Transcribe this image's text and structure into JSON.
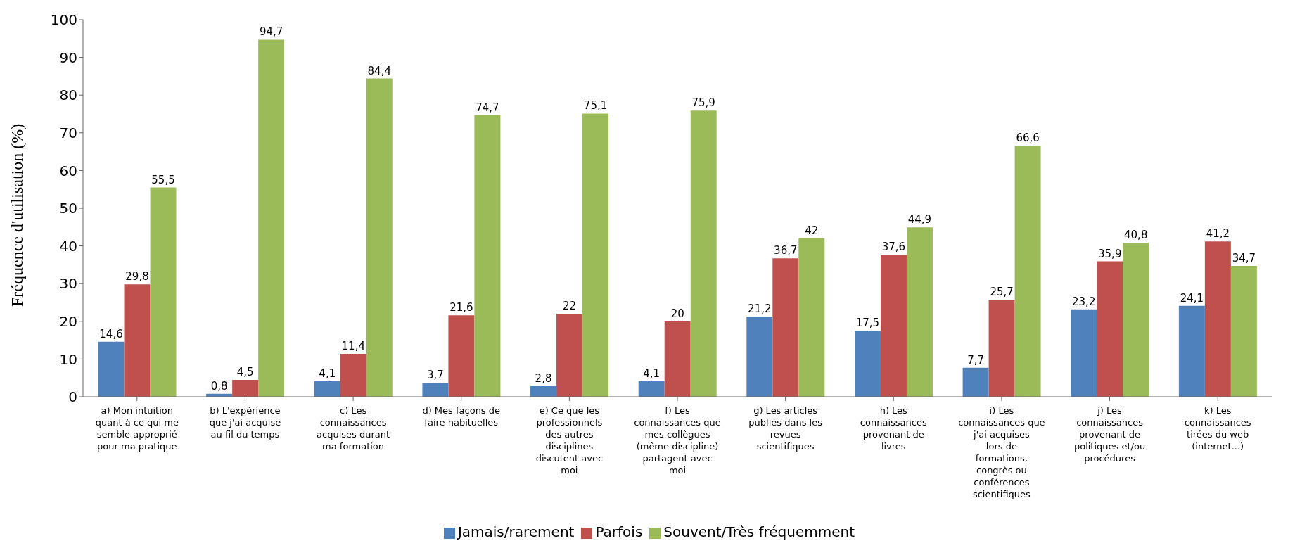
{
  "chart_data": {
    "type": "bar",
    "ylabel": "Fréquence d'utilisation (%)",
    "categories": [
      "a) Mon intuition quant à ce qui me semble approprié pour ma pratique",
      "b) L'expérience que j'ai acquise au fil du temps",
      "c) Les connaissances acquises durant ma formation",
      "d) Mes façons de faire habituelles",
      "e) Ce que les professionnels des autres disciplines discutent avec moi",
      "f) Les connaissances que mes collègues (même discipline) partagent avec moi",
      "g) Les articles publiés dans les revues scientifiques",
      "h) Les connaissances provenant de livres",
      "i) Les connaissances que j'ai acquises lors de formations, congrès ou conférences scientifiques",
      "j) Les connaissances provenant de politiques et/ou procédures",
      "k) Les connaissances tirées du web (internet...)"
    ],
    "series": [
      {
        "name": "Jamais/rarement",
        "color": "#4f81bd",
        "values": [
          14.6,
          0.8,
          4.1,
          3.7,
          2.8,
          4.1,
          21.2,
          17.5,
          7.7,
          23.2,
          24.1
        ],
        "value_labels": [
          "14,6",
          "0,8",
          "4,1",
          "3,7",
          "2,8",
          "4,1",
          "21,2",
          "17,5",
          "7,7",
          "23,2",
          "24,1"
        ]
      },
      {
        "name": "Parfois",
        "color": "#c0504d",
        "values": [
          29.8,
          4.5,
          11.4,
          21.6,
          22,
          20,
          36.7,
          37.6,
          25.7,
          35.9,
          41.2
        ],
        "value_labels": [
          "29,8",
          "4,5",
          "11,4",
          "21,6",
          "22",
          "20",
          "36,7",
          "37,6",
          "25,7",
          "35,9",
          "41,2"
        ]
      },
      {
        "name": "Souvent/Très fréquemment",
        "color": "#9bbb59",
        "values": [
          55.5,
          94.7,
          84.4,
          74.7,
          75.1,
          75.9,
          42,
          44.9,
          66.6,
          40.8,
          34.7
        ],
        "value_labels": [
          "55,5",
          "94,7",
          "84,4",
          "74,7",
          "75,1",
          "75,9",
          "42",
          "44,9",
          "66,6",
          "40,8",
          "34,7"
        ]
      }
    ],
    "ylim": [
      0,
      100
    ],
    "yticks": [
      0,
      10,
      20,
      30,
      40,
      50,
      60,
      70,
      80,
      90,
      100
    ],
    "grid": false,
    "legend": "bottom"
  }
}
